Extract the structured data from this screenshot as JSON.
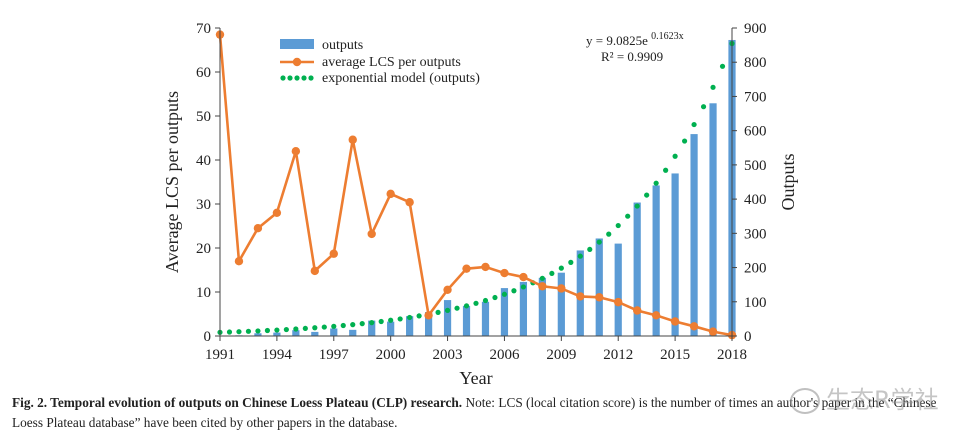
{
  "chart_data": {
    "type": "bar",
    "x_axis": {
      "label": "Year",
      "range": [
        1991,
        2018
      ],
      "ticks": [
        1991,
        1994,
        1997,
        2000,
        2003,
        2006,
        2009,
        2012,
        2015,
        2018
      ]
    },
    "y_left": {
      "label": "Average LCS per outputs",
      "range": [
        0,
        70
      ],
      "ticks": [
        0,
        10,
        20,
        30,
        40,
        50,
        60,
        70
      ]
    },
    "y_right": {
      "label": "Outputs",
      "range": [
        0,
        900
      ],
      "ticks": [
        0,
        100,
        200,
        300,
        400,
        500,
        600,
        700,
        800,
        900
      ]
    },
    "years": [
      1991,
      1992,
      1993,
      1994,
      1995,
      1996,
      1997,
      1998,
      1999,
      2000,
      2001,
      2002,
      2003,
      2004,
      2005,
      2006,
      2007,
      2008,
      2009,
      2010,
      2011,
      2012,
      2013,
      2014,
      2015,
      2016,
      2017,
      2018
    ],
    "series": [
      {
        "name": "outputs",
        "kind": "bar",
        "axis": "right",
        "color": "#5b9bd5",
        "values": [
          1,
          2,
          8,
          10,
          17,
          12,
          22,
          18,
          45,
          42,
          58,
          70,
          105,
          88,
          100,
          140,
          158,
          170,
          185,
          250,
          285,
          270,
          390,
          440,
          475,
          590,
          680,
          865
        ]
      },
      {
        "name": "average LCS per outputs",
        "kind": "line",
        "axis": "left",
        "color": "#ed7d31",
        "values": [
          68.5,
          17,
          24.5,
          28,
          42,
          14.8,
          18.7,
          44.6,
          23.2,
          32.3,
          30.4,
          4.7,
          10.5,
          15.3,
          15.7,
          14.3,
          13.4,
          11.3,
          10.8,
          9.0,
          8.8,
          7.7,
          5.8,
          4.7,
          3.3,
          2.2,
          1.0,
          0.2
        ]
      },
      {
        "name": "exponential model (outputs)",
        "kind": "dotted-line",
        "axis": "right",
        "color": "#00b050",
        "model": {
          "a": 9.0825,
          "b": 0.1623,
          "x_index_start": 1
        }
      }
    ],
    "annotations": {
      "equation_prefix": "y = 9.0825e",
      "equation_exponent": "0.1623x",
      "r_squared": "R² = 0.9909"
    },
    "legend_position": "top-left",
    "grid": false
  },
  "caption": {
    "bold": "Fig. 2. Temporal evolution of outputs on Chinese Loess Plateau (CLP) research.",
    "normal": " Note: LCS (local citation score) is the number of times an author's paper in the “Chinese Loess Plateau database” have been cited by other papers in the database."
  },
  "watermark": "生态R学社"
}
